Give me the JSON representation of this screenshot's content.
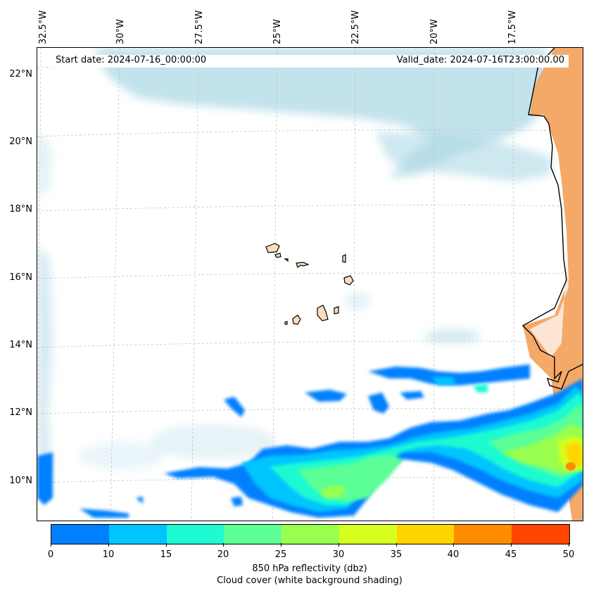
{
  "map": {
    "start_date": "Start date: 2024-07-16_00:00:00",
    "valid_date": "Valid_date: 2024-07-16T23:00:00.00",
    "lon_labels": [
      "32.5°W",
      "30°W",
      "27.5°W",
      "25°W",
      "22.5°W",
      "20°W",
      "17.5°W"
    ],
    "lat_labels": [
      "22°N",
      "20°N",
      "18°N",
      "16°N",
      "14°N",
      "12°N",
      "10°N"
    ],
    "land_color": "#f4a460",
    "cloud_color": "#add8e6",
    "coast_color": "#000000"
  },
  "colorbar": {
    "ticks": [
      "0",
      "10",
      "15",
      "20",
      "25",
      "30",
      "35",
      "40",
      "45",
      "50"
    ],
    "colors": [
      "#0080ff",
      "#00c5ff",
      "#1ffad2",
      "#5cff96",
      "#99ff4f",
      "#d6ff1f",
      "#ffd500",
      "#ff8c00",
      "#ff4500"
    ],
    "label_line1": "850 hPa reflectivity (dbz)",
    "label_line2": "Cloud cover (white background shading)"
  }
}
